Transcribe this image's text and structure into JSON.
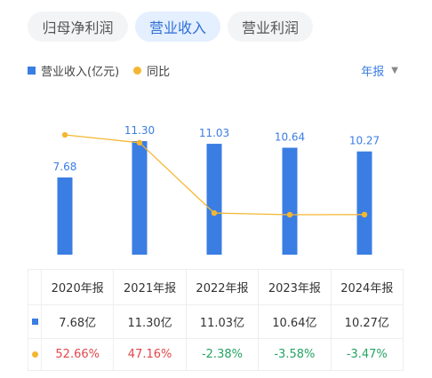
{
  "tabs": [
    {
      "label": "归母净利润",
      "active": false
    },
    {
      "label": "营业收入",
      "active": true
    },
    {
      "label": "营业利润",
      "active": false
    }
  ],
  "legend": {
    "revenue_label": "营业收入(亿元)",
    "yoy_label": "同比"
  },
  "period_selector": {
    "label": "年报",
    "caret": "▼"
  },
  "colors": {
    "bar": "#3a7de3",
    "line": "#f4b731",
    "positive": "#e2474a",
    "negative": "#25a462",
    "accent": "#2f6fd6"
  },
  "chart_data": {
    "type": "bar",
    "categories": [
      "2020年报",
      "2021年报",
      "2022年报",
      "2023年报",
      "2024年报"
    ],
    "series": [
      {
        "name": "营业收入(亿元)",
        "type": "bar",
        "values": [
          7.68,
          11.3,
          11.03,
          10.64,
          10.27
        ],
        "labels": [
          "7.68",
          "11.30",
          "11.03",
          "10.64",
          "10.27"
        ]
      },
      {
        "name": "同比",
        "type": "line",
        "values": [
          52.66,
          47.16,
          -2.38,
          -3.58,
          -3.47
        ]
      }
    ]
  },
  "table": {
    "headers": [
      "2020年报",
      "2021年报",
      "2022年报",
      "2023年报",
      "2024年报"
    ],
    "revenue": [
      "7.68亿",
      "11.30亿",
      "11.03亿",
      "10.64亿",
      "10.27亿"
    ],
    "yoy": [
      "52.66%",
      "47.16%",
      "-2.38%",
      "-3.58%",
      "-3.47%"
    ]
  }
}
